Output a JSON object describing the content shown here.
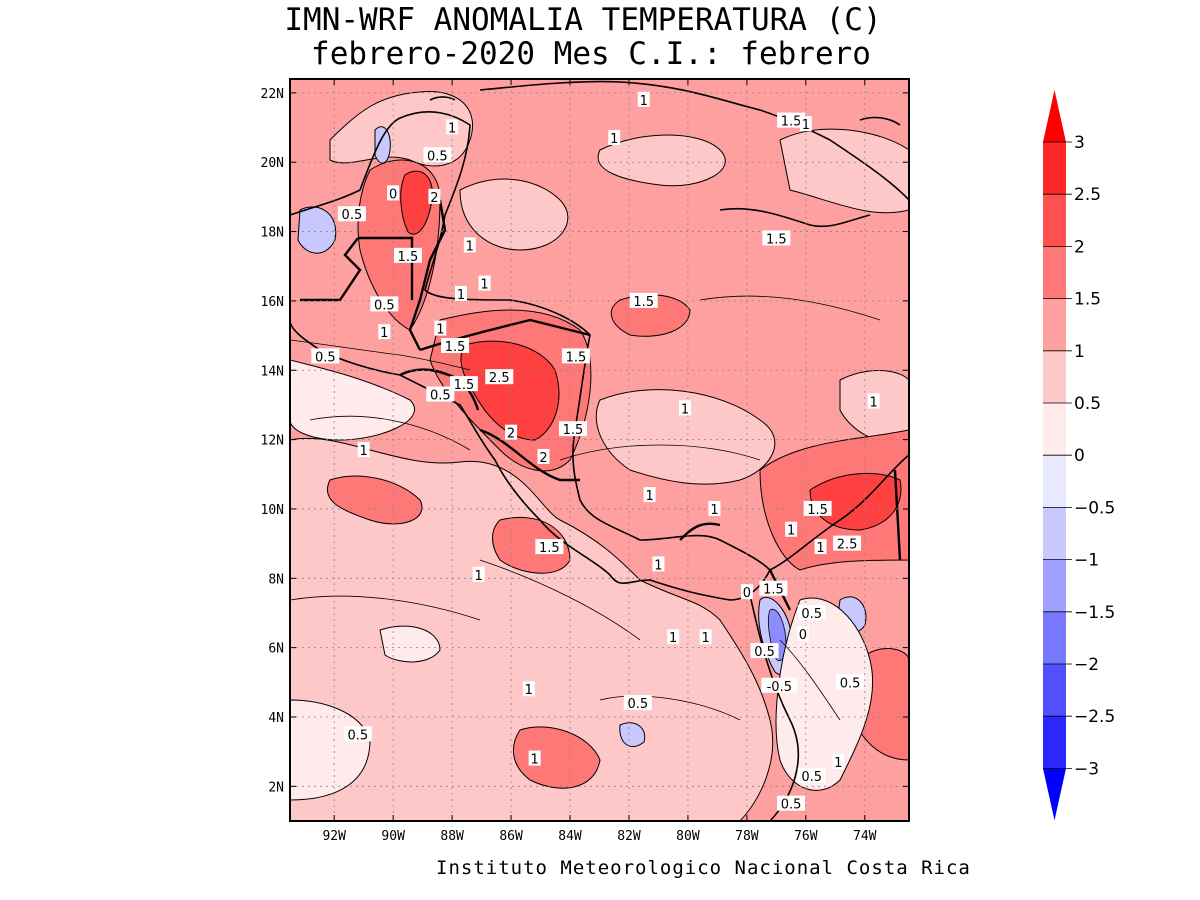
{
  "title_line1": "IMN-WRF  ANOMALIA TEMPERATURA (C)",
  "title_line2": "febrero-2020 Mes C.I.: febrero",
  "credit": "Instituto Meteorologico Nacional Costa Rica",
  "map": {
    "lon_range": [
      -93.5,
      -72.5
    ],
    "lat_range": [
      1.0,
      22.4
    ],
    "lon_ticks": [
      "92W",
      "90W",
      "88W",
      "86W",
      "84W",
      "82W",
      "80W",
      "78W",
      "76W",
      "74W"
    ],
    "lat_ticks": [
      "22N",
      "20N",
      "18N",
      "16N",
      "14N",
      "12N",
      "10N",
      "8N",
      "6N",
      "4N",
      "2N"
    ],
    "grid": true,
    "projection": "latitude-longitude"
  },
  "colorbar": {
    "levels": [
      "3",
      "2.5",
      "2",
      "1.5",
      "1",
      "0.5",
      "0",
      "-0.5",
      "-1",
      "-1.5",
      "-2",
      "-2.5",
      "-3"
    ],
    "colors": [
      "#ff0000",
      "#ff2828",
      "#ff5050",
      "#ff7878",
      "#ffa0a0",
      "#ffc8c8",
      "#ffebeb",
      "#e8e8ff",
      "#c8c8ff",
      "#a0a0ff",
      "#7878ff",
      "#5050ff",
      "#2828ff",
      "#0000ff"
    ],
    "placement": "right"
  },
  "contour_labels": [
    {
      "text": "1",
      "lon": -81.5,
      "lat": 21.8
    },
    {
      "text": "1.5",
      "lon": -76.5,
      "lat": 21.2
    },
    {
      "text": "1",
      "lon": -76.0,
      "lat": 21.1
    },
    {
      "text": "1",
      "lon": -88.0,
      "lat": 21.0
    },
    {
      "text": "1",
      "lon": -82.5,
      "lat": 20.7
    },
    {
      "text": "0.5",
      "lon": -88.5,
      "lat": 20.2
    },
    {
      "text": "0",
      "lon": -90.0,
      "lat": 19.1
    },
    {
      "text": "2",
      "lon": -88.6,
      "lat": 19.0
    },
    {
      "text": "0.5",
      "lon": -91.4,
      "lat": 18.5
    },
    {
      "text": "1.5",
      "lon": -77.0,
      "lat": 17.8
    },
    {
      "text": "1",
      "lon": -87.4,
      "lat": 17.6
    },
    {
      "text": "1.5",
      "lon": -89.5,
      "lat": 17.3
    },
    {
      "text": "1",
      "lon": -86.9,
      "lat": 16.5
    },
    {
      "text": "1",
      "lon": -87.7,
      "lat": 16.2
    },
    {
      "text": "1.5",
      "lon": -81.5,
      "lat": 16.0
    },
    {
      "text": "0.5",
      "lon": -90.3,
      "lat": 15.9
    },
    {
      "text": "1",
      "lon": -90.3,
      "lat": 15.1
    },
    {
      "text": "1",
      "lon": -88.4,
      "lat": 15.2
    },
    {
      "text": "1.5",
      "lon": -87.9,
      "lat": 14.7
    },
    {
      "text": "0.5",
      "lon": -92.3,
      "lat": 14.4
    },
    {
      "text": "1.5",
      "lon": -83.8,
      "lat": 14.4
    },
    {
      "text": "2.5",
      "lon": -86.4,
      "lat": 13.8
    },
    {
      "text": "1.5",
      "lon": -87.6,
      "lat": 13.6
    },
    {
      "text": "0.5",
      "lon": -88.4,
      "lat": 13.3
    },
    {
      "text": "1",
      "lon": -73.7,
      "lat": 13.1
    },
    {
      "text": "1",
      "lon": -80.1,
      "lat": 12.9
    },
    {
      "text": "1.5",
      "lon": -83.9,
      "lat": 12.3
    },
    {
      "text": "2",
      "lon": -86.0,
      "lat": 12.2
    },
    {
      "text": "1",
      "lon": -91.0,
      "lat": 11.7
    },
    {
      "text": "2",
      "lon": -84.9,
      "lat": 11.5
    },
    {
      "text": "1",
      "lon": -81.3,
      "lat": 10.4
    },
    {
      "text": "1",
      "lon": -79.1,
      "lat": 10.0
    },
    {
      "text": "1.5",
      "lon": -75.6,
      "lat": 10.0
    },
    {
      "text": "1",
      "lon": -76.5,
      "lat": 9.4
    },
    {
      "text": "2.5",
      "lon": -74.6,
      "lat": 9.0
    },
    {
      "text": "1",
      "lon": -75.5,
      "lat": 8.9
    },
    {
      "text": "1.5",
      "lon": -84.7,
      "lat": 8.9
    },
    {
      "text": "1",
      "lon": -81.0,
      "lat": 8.4
    },
    {
      "text": "1",
      "lon": -87.1,
      "lat": 8.1
    },
    {
      "text": "1.5",
      "lon": -77.1,
      "lat": 7.7
    },
    {
      "text": "0",
      "lon": -78.0,
      "lat": 7.6
    },
    {
      "text": "0.5",
      "lon": -75.8,
      "lat": 7.0
    },
    {
      "text": "0",
      "lon": -76.1,
      "lat": 6.4
    },
    {
      "text": "1",
      "lon": -80.5,
      "lat": 6.3
    },
    {
      "text": "1",
      "lon": -79.4,
      "lat": 6.3
    },
    {
      "text": "0.5",
      "lon": -77.4,
      "lat": 5.9
    },
    {
      "text": "0.5",
      "lon": -74.5,
      "lat": 5.0
    },
    {
      "text": "-0.5",
      "lon": -76.9,
      "lat": 4.9
    },
    {
      "text": "1",
      "lon": -85.4,
      "lat": 4.8
    },
    {
      "text": "0.5",
      "lon": -81.7,
      "lat": 4.4
    },
    {
      "text": "0.5",
      "lon": -91.2,
      "lat": 3.5
    },
    {
      "text": "1",
      "lon": -85.2,
      "lat": 2.8
    },
    {
      "text": "1",
      "lon": -74.9,
      "lat": 2.7
    },
    {
      "text": "0.5",
      "lon": -75.8,
      "lat": 2.3
    },
    {
      "text": "0.5",
      "lon": -76.5,
      "lat": 1.5
    }
  ]
}
